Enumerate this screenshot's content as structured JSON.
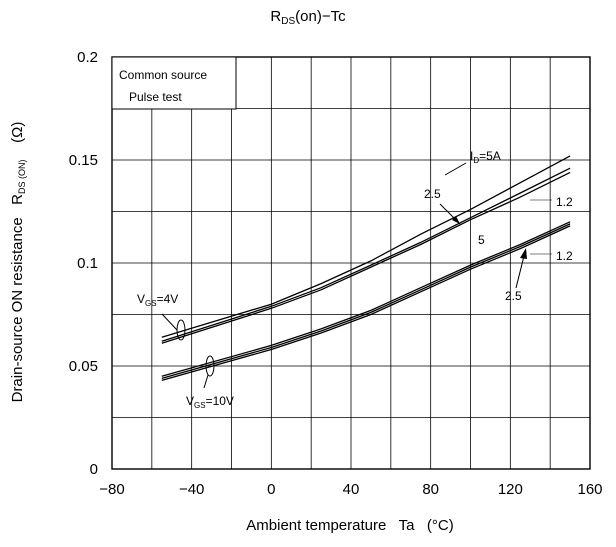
{
  "chart_data": {
    "type": "line",
    "title": "R",
    "title_sub": "DS",
    "title_rest": "(on)−Tc",
    "xlabel": "Ambient temperature   Ta   (°C)",
    "ylabel_main": "Drain-source ON resistance   R",
    "ylabel_sub": "DS (ON)",
    "ylabel_unit": "(Ω)",
    "xlim": [
      -80,
      160
    ],
    "ylim": [
      0,
      0.2
    ],
    "xticks": [
      "−80",
      "−40",
      "0",
      "40",
      "80",
      "120",
      "160"
    ],
    "xtick_values": [
      -80,
      -40,
      0,
      40,
      80,
      120,
      160
    ],
    "yticks": [
      "0",
      "0.05",
      "0.1",
      "0.15",
      "0.2"
    ],
    "ytick_values": [
      0,
      0.05,
      0.1,
      0.15,
      0.2
    ],
    "grid": true,
    "conditions": [
      "Common source",
      "Pulse test"
    ],
    "series": [
      {
        "x": [
          -55,
          0,
          25,
          50,
          75,
          100,
          125,
          150
        ],
        "values": [
          0.064,
          0.08,
          0.09,
          0.101,
          0.114,
          0.126,
          0.139,
          0.152
        ]
      },
      {
        "x": [
          -55,
          0,
          25,
          50,
          75,
          100,
          125,
          150
        ],
        "values": [
          0.062,
          0.079,
          0.088,
          0.099,
          0.11,
          0.122,
          0.134,
          0.146
        ]
      },
      {
        "x": [
          -55,
          0,
          25,
          50,
          75,
          100,
          125,
          150
        ],
        "values": [
          0.061,
          0.078,
          0.087,
          0.098,
          0.109,
          0.121,
          0.132,
          0.144
        ]
      },
      {
        "x": [
          -55,
          0,
          25,
          50,
          75,
          100,
          125,
          150
        ],
        "values": [
          0.045,
          0.06,
          0.068,
          0.077,
          0.088,
          0.099,
          0.109,
          0.12
        ]
      },
      {
        "x": [
          -55,
          0,
          25,
          50,
          75,
          100,
          125,
          150
        ],
        "values": [
          0.044,
          0.059,
          0.067,
          0.076,
          0.087,
          0.098,
          0.108,
          0.119
        ]
      },
      {
        "x": [
          -55,
          0,
          25,
          50,
          75,
          100,
          125,
          150
        ],
        "values": [
          0.043,
          0.058,
          0.066,
          0.075,
          0.086,
          0.097,
          0.107,
          0.118
        ]
      }
    ],
    "annotations": {
      "id_label": {
        "pre": "I",
        "sub": "D",
        "post": "=5A"
      },
      "vgs4_label": {
        "pre": "V",
        "sub": "GS",
        "post": "=4V"
      },
      "vgs10_label": {
        "pre": "V",
        "sub": "GS",
        "post": "=10V"
      },
      "a_2_5_upper": "2.5",
      "a_1_2_upper": "1.2",
      "a_5_lower": "5",
      "a_1_2_lower": "1.2",
      "a_2_5_lower": "2.5"
    }
  }
}
